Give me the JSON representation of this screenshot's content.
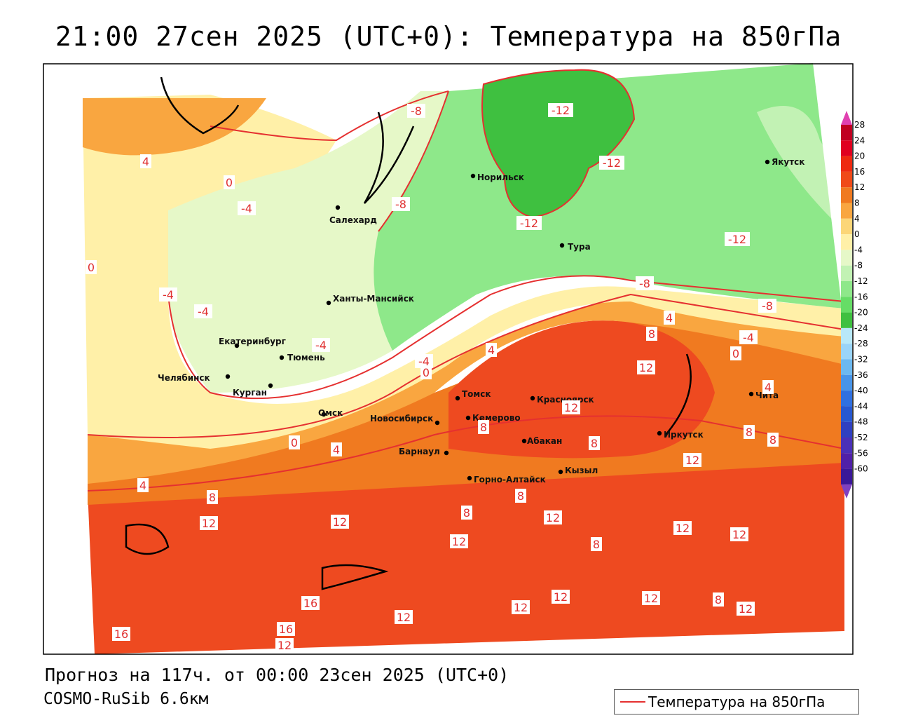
{
  "title": "21:00 27сен 2025 (UTC+0): Температура на 850гПа",
  "footer": {
    "forecast": "Прогноз на 117ч. от 00:00 23сен 2025 (UTC+0)",
    "model": "COSMO-RuSib 6.6км"
  },
  "legend": {
    "label": "Температура на 850гПа",
    "color": "#e53030"
  },
  "colorbar": {
    "levels": [
      28,
      24,
      20,
      16,
      12,
      8,
      4,
      0,
      -4,
      -8,
      -12,
      -16,
      -20,
      -24,
      -28,
      -32,
      -36,
      -40,
      -44,
      -48,
      -52,
      -56,
      -60
    ],
    "colors": [
      "#c00020",
      "#e00020",
      "#ee2a10",
      "#f04a18",
      "#f07a20",
      "#f9a640",
      "#fcd678",
      "#fff0a8",
      "#e6f8c8",
      "#c2f2b4",
      "#8ee88a",
      "#66dd66",
      "#3fc040",
      "#b8e8f8",
      "#9ad4f8",
      "#6cb8f0",
      "#4894e8",
      "#3070e0",
      "#2858d0",
      "#3040c0",
      "#4a30b8",
      "#5020a8",
      "#3a1898"
    ],
    "top_color": "#e040b0",
    "bottom_color": "#8040c0"
  },
  "cities": [
    {
      "name": "Норильск"
    },
    {
      "name": "Якутск"
    },
    {
      "name": "Салехард"
    },
    {
      "name": "Тура"
    },
    {
      "name": "Ханты-Мансийск"
    },
    {
      "name": "Екатеринбург"
    },
    {
      "name": "Тюмень"
    },
    {
      "name": "Челябинск"
    },
    {
      "name": "Курган"
    },
    {
      "name": "Омск"
    },
    {
      "name": "Новосибирск"
    },
    {
      "name": "Томск"
    },
    {
      "name": "Кемерово"
    },
    {
      "name": "Красноярск"
    },
    {
      "name": "Барнаул"
    },
    {
      "name": "Абакан"
    },
    {
      "name": "Горно-Алтайск"
    },
    {
      "name": "Кызыл"
    },
    {
      "name": "Иркутск"
    },
    {
      "name": "Чита"
    }
  ],
  "contour_labels": [
    "-12",
    "-12",
    "-12",
    "-12",
    "-8",
    "-8",
    "-8",
    "-8",
    "-4",
    "-4",
    "-4",
    "-4",
    "-4",
    "-4",
    "0",
    "0",
    "0",
    "0",
    "0",
    "4",
    "4",
    "4",
    "4",
    "4",
    "4",
    "8",
    "8",
    "8",
    "8",
    "8",
    "8",
    "8",
    "8",
    "8",
    "8",
    "12",
    "12",
    "12",
    "12",
    "12",
    "12",
    "12",
    "12",
    "12",
    "12",
    "12",
    "12",
    "12",
    "12",
    "12",
    "16",
    "16",
    "16"
  ]
}
